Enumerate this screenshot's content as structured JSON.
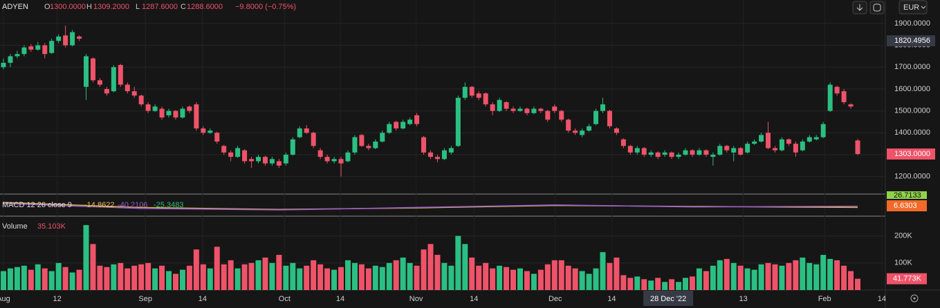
{
  "header": {
    "symbol": "ADYEN",
    "o_label": "O",
    "open": "1300.0000",
    "h_label": "H",
    "high": "1309.2000",
    "l_label": "L",
    "low": "1287.6000",
    "c_label": "C",
    "close": "1288.6000",
    "change": "−9.8000 (−0.75%)",
    "currency": "EUR"
  },
  "chart_data": {
    "type": "candlestick",
    "up_color": "#2bbf83",
    "down_color": "#ef5369",
    "grid": true,
    "candles": [
      [
        1700,
        1740,
        1690,
        1720
      ],
      [
        1720,
        1760,
        1700,
        1750
      ],
      [
        1750,
        1775,
        1740,
        1760
      ],
      [
        1760,
        1800,
        1750,
        1790
      ],
      [
        1795,
        1805,
        1770,
        1780
      ],
      [
        1780,
        1815,
        1775,
        1800
      ],
      [
        1800,
        1810,
        1740,
        1760
      ],
      [
        1765,
        1830,
        1760,
        1820
      ],
      [
        1820,
        1850,
        1810,
        1840
      ],
      [
        1845,
        1890,
        1790,
        1800
      ],
      [
        1800,
        1870,
        1795,
        1860
      ],
      [
        1840,
        1845,
        1820,
        1830
      ],
      [
        1610,
        1760,
        1550,
        1750
      ],
      [
        1740,
        1745,
        1630,
        1640
      ],
      [
        1640,
        1650,
        1610,
        1620
      ],
      [
        1600,
        1610,
        1570,
        1580
      ],
      [
        1590,
        1710,
        1585,
        1700
      ],
      [
        1710,
        1715,
        1610,
        1620
      ],
      [
        1620,
        1630,
        1580,
        1590
      ],
      [
        1590,
        1610,
        1560,
        1570
      ],
      [
        1570,
        1575,
        1520,
        1530
      ],
      [
        1530,
        1540,
        1490,
        1500
      ],
      [
        1500,
        1530,
        1495,
        1520
      ],
      [
        1510,
        1520,
        1460,
        1470
      ],
      [
        1480,
        1510,
        1470,
        1500
      ],
      [
        1500,
        1505,
        1460,
        1470
      ],
      [
        1470,
        1520,
        1465,
        1510
      ],
      [
        1520,
        1525,
        1490,
        1500
      ],
      [
        1530,
        1540,
        1410,
        1420
      ],
      [
        1420,
        1430,
        1390,
        1400
      ],
      [
        1400,
        1420,
        1395,
        1410
      ],
      [
        1400,
        1405,
        1350,
        1360
      ],
      [
        1340,
        1345,
        1300,
        1310
      ],
      [
        1310,
        1320,
        1270,
        1290
      ],
      [
        1290,
        1340,
        1285,
        1330
      ],
      [
        1320,
        1325,
        1260,
        1270
      ],
      [
        1280,
        1290,
        1240,
        1270
      ],
      [
        1270,
        1300,
        1260,
        1290
      ],
      [
        1290,
        1295,
        1250,
        1260
      ],
      [
        1260,
        1290,
        1250,
        1280
      ],
      [
        1270,
        1280,
        1240,
        1250
      ],
      [
        1260,
        1310,
        1250,
        1300
      ],
      [
        1300,
        1380,
        1295,
        1370
      ],
      [
        1380,
        1430,
        1375,
        1420
      ],
      [
        1420,
        1435,
        1395,
        1400
      ],
      [
        1400,
        1405,
        1330,
        1340
      ],
      [
        1320,
        1330,
        1280,
        1290
      ],
      [
        1290,
        1300,
        1260,
        1270
      ],
      [
        1270,
        1290,
        1260,
        1280
      ],
      [
        1280,
        1290,
        1200,
        1260
      ],
      [
        1270,
        1320,
        1265,
        1310
      ],
      [
        1310,
        1390,
        1300,
        1380
      ],
      [
        1390,
        1395,
        1335,
        1340
      ],
      [
        1340,
        1350,
        1320,
        1330
      ],
      [
        1330,
        1370,
        1325,
        1360
      ],
      [
        1360,
        1410,
        1355,
        1400
      ],
      [
        1400,
        1450,
        1395,
        1440
      ],
      [
        1450,
        1455,
        1410,
        1420
      ],
      [
        1420,
        1460,
        1415,
        1450
      ],
      [
        1440,
        1470,
        1435,
        1460
      ],
      [
        1480,
        1490,
        1430,
        1440
      ],
      [
        1380,
        1385,
        1300,
        1310
      ],
      [
        1310,
        1320,
        1280,
        1290
      ],
      [
        1290,
        1300,
        1265,
        1280
      ],
      [
        1280,
        1330,
        1275,
        1320
      ],
      [
        1310,
        1340,
        1300,
        1330
      ],
      [
        1340,
        1570,
        1335,
        1560
      ],
      [
        1560,
        1630,
        1550,
        1610
      ],
      [
        1610,
        1615,
        1560,
        1570
      ],
      [
        1580,
        1590,
        1550,
        1560
      ],
      [
        1580,
        1585,
        1520,
        1530
      ],
      [
        1530,
        1540,
        1480,
        1500
      ],
      [
        1500,
        1560,
        1495,
        1550
      ],
      [
        1540,
        1545,
        1500,
        1510
      ],
      [
        1510,
        1520,
        1490,
        1500
      ],
      [
        1500,
        1520,
        1495,
        1510
      ],
      [
        1510,
        1515,
        1480,
        1490
      ],
      [
        1490,
        1520,
        1485,
        1510
      ],
      [
        1510,
        1515,
        1490,
        1500
      ],
      [
        1500,
        1505,
        1450,
        1460
      ],
      [
        1520,
        1530,
        1490,
        1500
      ],
      [
        1500,
        1505,
        1450,
        1460
      ],
      [
        1460,
        1465,
        1400,
        1410
      ],
      [
        1410,
        1420,
        1390,
        1400
      ],
      [
        1390,
        1420,
        1380,
        1410
      ],
      [
        1410,
        1440,
        1405,
        1430
      ],
      [
        1440,
        1510,
        1435,
        1500
      ],
      [
        1500,
        1560,
        1490,
        1530
      ],
      [
        1500,
        1505,
        1420,
        1430
      ],
      [
        1420,
        1425,
        1390,
        1400
      ],
      [
        1370,
        1375,
        1330,
        1340
      ],
      [
        1340,
        1345,
        1300,
        1310
      ],
      [
        1310,
        1340,
        1300,
        1330
      ],
      [
        1330,
        1335,
        1290,
        1300
      ],
      [
        1300,
        1320,
        1290,
        1310
      ],
      [
        1310,
        1315,
        1280,
        1290
      ],
      [
        1300,
        1320,
        1290,
        1310
      ],
      [
        1310,
        1315,
        1280,
        1290
      ],
      [
        1290,
        1310,
        1280,
        1300
      ],
      [
        1300,
        1330,
        1295,
        1320
      ],
      [
        1320,
        1325,
        1290,
        1300
      ],
      [
        1300,
        1330,
        1295,
        1320
      ],
      [
        1320,
        1325,
        1290,
        1300
      ],
      [
        1290,
        1310,
        1250,
        1300
      ],
      [
        1300,
        1350,
        1295,
        1340
      ],
      [
        1340,
        1345,
        1310,
        1320
      ],
      [
        1310,
        1340,
        1270,
        1330
      ],
      [
        1330,
        1335,
        1295,
        1300
      ],
      [
        1310,
        1360,
        1305,
        1350
      ],
      [
        1350,
        1370,
        1345,
        1360
      ],
      [
        1360,
        1400,
        1355,
        1390
      ],
      [
        1400,
        1450,
        1325,
        1330
      ],
      [
        1330,
        1340,
        1310,
        1320
      ],
      [
        1320,
        1380,
        1315,
        1370
      ],
      [
        1370,
        1375,
        1340,
        1350
      ],
      [
        1350,
        1360,
        1290,
        1310
      ],
      [
        1320,
        1370,
        1315,
        1360
      ],
      [
        1360,
        1390,
        1355,
        1380
      ],
      [
        1370,
        1390,
        1365,
        1380
      ],
      [
        1380,
        1450,
        1375,
        1440
      ],
      [
        1500,
        1630,
        1495,
        1620
      ],
      [
        1610,
        1615,
        1570,
        1580
      ],
      [
        1590,
        1600,
        1530,
        1540
      ],
      [
        1530,
        1535,
        1510,
        1520
      ],
      [
        1365,
        1372,
        1298,
        1303
      ]
    ],
    "volume": [
      70000,
      80000,
      85000,
      90000,
      75000,
      95000,
      80000,
      70000,
      100000,
      85000,
      65000,
      75000,
      240000,
      170000,
      90000,
      85000,
      95000,
      100000,
      80000,
      90000,
      95000,
      100000,
      80000,
      90000,
      70000,
      60000,
      75000,
      90000,
      150000,
      95000,
      80000,
      160000,
      95000,
      110000,
      80000,
      95000,
      100000,
      110000,
      120000,
      100000,
      130000,
      90000,
      100000,
      80000,
      90000,
      110000,
      95000,
      80000,
      75000,
      85000,
      110000,
      100000,
      95000,
      80000,
      90000,
      85000,
      100000,
      110000,
      120000,
      100000,
      90000,
      150000,
      170000,
      130000,
      100000,
      90000,
      200000,
      170000,
      120000,
      90000,
      100000,
      80000,
      90000,
      85000,
      75000,
      80000,
      70000,
      60000,
      75000,
      95000,
      110000,
      110000,
      90000,
      80000,
      70000,
      60000,
      80000,
      140000,
      100000,
      120000,
      55000,
      45000,
      50000,
      40000,
      35000,
      45000,
      30000,
      40000,
      30000,
      45000,
      50000,
      80000,
      70000,
      90000,
      110000,
      115000,
      100000,
      90000,
      80000,
      75000,
      95000,
      100000,
      95000,
      90000,
      100000,
      110000,
      120000,
      100000,
      95000,
      130000,
      115000,
      110000,
      90000,
      70000,
      41773
    ],
    "ylim": [
      1120,
      2007
    ],
    "yticks": [
      {
        "value": 1900,
        "label": "1900.0000"
      },
      {
        "value": 1800,
        "label": "1800.0000"
      },
      {
        "value": 1700,
        "label": "1700.0000"
      },
      {
        "value": 1600,
        "label": "1600.0000"
      },
      {
        "value": 1500,
        "label": "1500.0000"
      },
      {
        "value": 1400,
        "label": "1400.0000"
      },
      {
        "value": 1300,
        "label": "1300.0000"
      },
      {
        "value": 1200,
        "label": "1200.0000"
      }
    ],
    "crosshair_price": {
      "value": 1820.4956,
      "label": "1820.4956"
    },
    "last_price": {
      "value": 1303,
      "label": "1303.0000"
    },
    "xticks": [
      {
        "value": 0,
        "label": "Aug"
      },
      {
        "value": 7.8,
        "label": "12"
      },
      {
        "value": 20.6,
        "label": "Sep"
      },
      {
        "value": 28.9,
        "label": "14"
      },
      {
        "value": 40.8,
        "label": "Oct"
      },
      {
        "value": 48.9,
        "label": "14"
      },
      {
        "value": 59.9,
        "label": "Nov"
      },
      {
        "value": 68.3,
        "label": "14"
      },
      {
        "value": 80.1,
        "label": "Dec"
      },
      {
        "value": 88.3,
        "label": "14"
      },
      {
        "value": 107.4,
        "label": "13"
      },
      {
        "value": 119.2,
        "label": "Feb"
      },
      {
        "value": 127.5,
        "label": "14"
      }
    ],
    "crosshair_date": {
      "value": 96.5,
      "label": "28 Dec '22"
    },
    "macd": {
      "name": "MACD 12 26 close 9",
      "legend": [
        "-14.8622",
        "-40.2106",
        "-25.3483"
      ],
      "right_labels": [
        "26.7133",
        "6.6303"
      ],
      "ylim": [
        -200,
        200
      ],
      "x": [
        0,
        20,
        40,
        60,
        80,
        100,
        124
      ],
      "macd_values": [
        40,
        -60,
        -90,
        -40,
        10,
        -30,
        -14.86
      ],
      "signal_values": [
        60,
        -40,
        -80,
        -50,
        0,
        -20,
        -40.21
      ],
      "macd_color": "#9a5cd0",
      "signal_color": "#d8b44a"
    },
    "volume_panel": {
      "name": "Volume",
      "legend_value": "35.103K",
      "last_label": "41.773K",
      "ylim": [
        0,
        273000
      ],
      "yticks": [
        {
          "value": 200000,
          "label": "200K"
        },
        {
          "value": 100000,
          "label": "100K"
        }
      ]
    }
  }
}
